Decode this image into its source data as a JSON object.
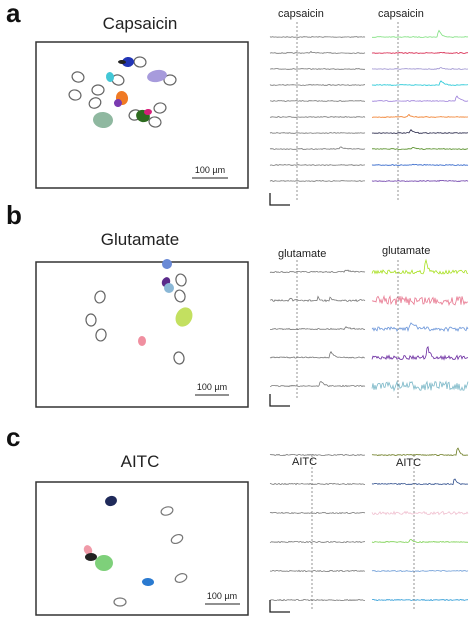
{
  "panels": [
    {
      "letter": "a",
      "title": "Capsaicin",
      "scale_bar": "100 µm",
      "left_label": "capsaicin",
      "right_label": "capsaicin"
    },
    {
      "letter": "b",
      "title": "Glutamate",
      "scale_bar": "100 µm",
      "left_label": "glutamate",
      "right_label": "glutamate"
    },
    {
      "letter": "c",
      "title": "AITC",
      "scale_bar": "100 µm",
      "left_label": "AITC",
      "right_label": "AITC"
    }
  ]
}
